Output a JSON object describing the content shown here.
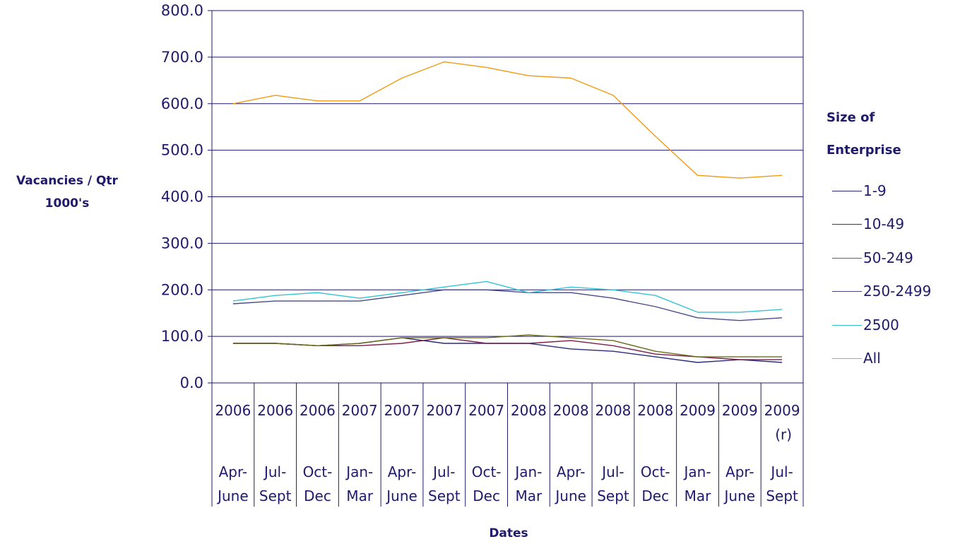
{
  "chart_data": {
    "type": "line",
    "title": "",
    "ylabel": [
      "Vacancies / Qtr",
      "1000's"
    ],
    "xlabel": "Dates",
    "ylim": [
      0,
      800
    ],
    "yticks": [
      "0.0",
      "100.0",
      "200.0",
      "300.0",
      "400.0",
      "500.0",
      "600.0",
      "700.0",
      "800.0"
    ],
    "grid": true,
    "legend_title": [
      "Size of",
      "Enterprise"
    ],
    "legend_position": "right",
    "categories": [
      {
        "year": "2006",
        "suffix": "",
        "period": [
          "Apr-",
          "June"
        ]
      },
      {
        "year": "2006",
        "suffix": "",
        "period": [
          "Jul-",
          "Sept"
        ]
      },
      {
        "year": "2006",
        "suffix": "",
        "period": [
          "Oct-",
          "Dec"
        ]
      },
      {
        "year": "2007",
        "suffix": "",
        "period": [
          "Jan-",
          "Mar"
        ]
      },
      {
        "year": "2007",
        "suffix": "",
        "period": [
          "Apr-",
          "June"
        ]
      },
      {
        "year": "2007",
        "suffix": "",
        "period": [
          "Jul-",
          "Sept"
        ]
      },
      {
        "year": "2007",
        "suffix": "",
        "period": [
          "Oct-",
          "Dec"
        ]
      },
      {
        "year": "2008",
        "suffix": "",
        "period": [
          "Jan-",
          "Mar"
        ]
      },
      {
        "year": "2008",
        "suffix": "",
        "period": [
          "Apr-",
          "June"
        ]
      },
      {
        "year": "2008",
        "suffix": "",
        "period": [
          "Jul-",
          "Sept"
        ]
      },
      {
        "year": "2008",
        "suffix": "",
        "period": [
          "Oct-",
          "Dec"
        ]
      },
      {
        "year": "2009",
        "suffix": "",
        "period": [
          "Jan-",
          "Mar"
        ]
      },
      {
        "year": "2009",
        "suffix": "",
        "period": [
          "Apr-",
          "June"
        ]
      },
      {
        "year": "2009",
        "suffix": "(r)",
        "period": [
          "Jul-",
          "Sept"
        ]
      }
    ],
    "series": [
      {
        "name": "1-9",
        "color": "#2b2a7a",
        "values": [
          85,
          85,
          80,
          85,
          97,
          85,
          85,
          85,
          73,
          68,
          56,
          44,
          50,
          44
        ]
      },
      {
        "name": "10-49",
        "color": "#7a1f4a",
        "values": [
          85,
          85,
          80,
          80,
          85,
          97,
          85,
          85,
          91,
          80,
          62,
          56,
          50,
          50
        ]
      },
      {
        "name": "50-249",
        "color": "#6b6a1a",
        "values": [
          85,
          85,
          80,
          85,
          97,
          97,
          97,
          103,
          97,
          91,
          68,
          56,
          56,
          56
        ]
      },
      {
        "name": "250-2499",
        "color": "#4a4a8a",
        "values": [
          170,
          176,
          176,
          176,
          188,
          200,
          200,
          194,
          194,
          182,
          164,
          140,
          134,
          140
        ]
      },
      {
        "name": "2500",
        "color": "#33c3d3",
        "values": [
          176,
          188,
          194,
          182,
          194,
          206,
          218,
          194,
          206,
          200,
          188,
          152,
          152,
          158
        ]
      },
      {
        "name": "All",
        "color": "#f39a13",
        "values": [
          600,
          618,
          606,
          606,
          655,
          690,
          678,
          660,
          655,
          618,
          530,
          446,
          440,
          446
        ]
      }
    ]
  }
}
